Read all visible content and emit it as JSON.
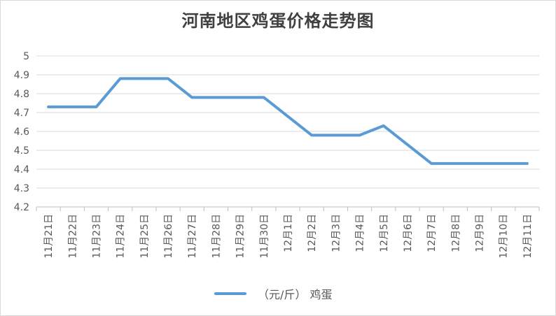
{
  "chart_data": {
    "type": "line",
    "title": "河南地区鸡蛋价格走势图",
    "categories": [
      "11月21日",
      "11月22日",
      "11月23日",
      "11月24日",
      "11月25日",
      "11月26日",
      "11月27日",
      "11月28日",
      "11月29日",
      "11月30日",
      "12月1日",
      "12月2日",
      "12月3日",
      "12月4日",
      "12月5日",
      "12月6日",
      "12月7日",
      "12月8日",
      "12月9日",
      "12月10日",
      "12月11日"
    ],
    "series": [
      {
        "name": "（元/斤） 鸡蛋",
        "values": [
          4.73,
          4.73,
          4.73,
          4.88,
          4.88,
          4.88,
          4.78,
          4.78,
          4.78,
          4.78,
          4.68,
          4.58,
          4.58,
          4.58,
          4.63,
          4.53,
          4.43,
          4.43,
          4.43,
          4.43,
          4.43
        ]
      }
    ],
    "ylim": [
      4.2,
      5.0
    ],
    "yticks": [
      "4.2",
      "4.3",
      "4.4",
      "4.5",
      "4.6",
      "4.7",
      "4.8",
      "4.9",
      "5"
    ],
    "grid": true,
    "legend_position": "bottom",
    "line_color": "#5b9bd5"
  }
}
